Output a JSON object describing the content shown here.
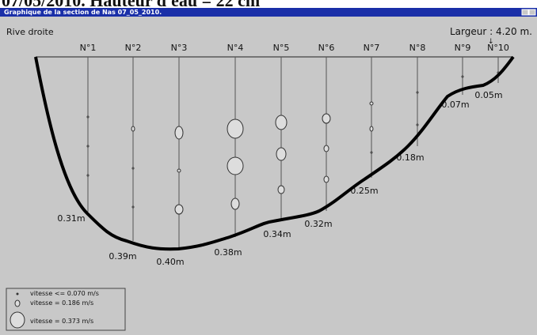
{
  "caption": "07/05/2010. Hauteur d'eau = 22 cm",
  "window": {
    "title": "Graphique de la section de Nas 07_05_2010."
  },
  "bank_label": "Rive droite",
  "width_label": "Largeur : 4.20 m.",
  "verticals": [
    {
      "label": "N°1",
      "depth": "0.31m"
    },
    {
      "label": "N°2",
      "depth": "0.39m"
    },
    {
      "label": "N°3",
      "depth": "0.40m"
    },
    {
      "label": "N°4",
      "depth": "0.38m"
    },
    {
      "label": "N°5",
      "depth": "0.34m"
    },
    {
      "label": "N°6",
      "depth": "0.32m"
    },
    {
      "label": "N°7",
      "depth": "0.25m"
    },
    {
      "label": "N°8",
      "depth": "0.18m"
    },
    {
      "label": "N°9",
      "depth": "0.07m"
    },
    {
      "label": "N°10",
      "depth": "0.05m"
    }
  ],
  "legend": [
    "vitesse <= 0.070 m/s",
    "vitesse = 0.186 m/s",
    "vitesse = 0.373 m/s"
  ]
}
